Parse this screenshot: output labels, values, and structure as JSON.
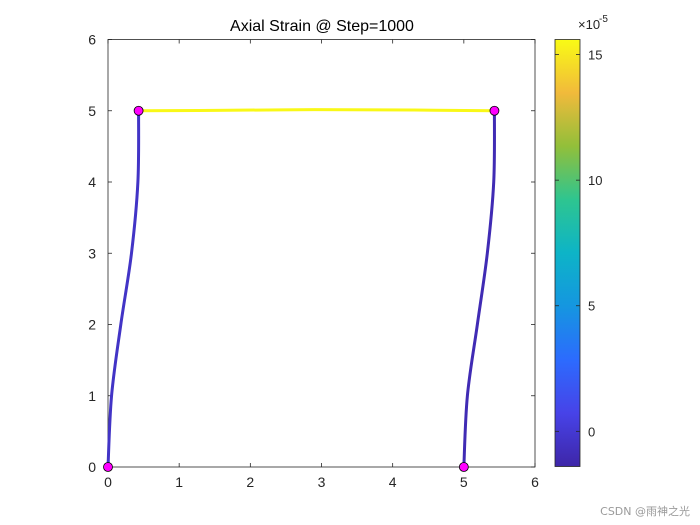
{
  "chart_data": [
    {
      "type": "line",
      "title": "Axial Strain @ Step=1000",
      "xlim": [
        0,
        6
      ],
      "ylim": [
        0,
        6
      ],
      "x_ticks": [
        "0",
        "1",
        "2",
        "3",
        "4",
        "5",
        "6"
      ],
      "y_ticks": [
        "0",
        "1",
        "2",
        "3",
        "4",
        "5",
        "6"
      ],
      "grid": false,
      "series": [
        {
          "strain": -4e-06,
          "x": [
            0,
            0.05,
            0.18,
            0.33,
            0.42,
            0.43
          ],
          "y": [
            0,
            1,
            2,
            3,
            4,
            5
          ]
        },
        {
          "strain": 0.000155,
          "x": [
            0.43,
            1.5,
            2.9,
            4.3,
            5.43
          ],
          "y": [
            5,
            5.005,
            5.015,
            5.01,
            5
          ]
        },
        {
          "strain": -1e-05,
          "x": [
            5,
            5.05,
            5.19,
            5.33,
            5.42,
            5.43
          ],
          "y": [
            0,
            1,
            2,
            3,
            4,
            5
          ]
        }
      ],
      "nodes": {
        "x": [
          0,
          0.43,
          5,
          5.43
        ],
        "y": [
          0,
          5,
          0,
          5
        ],
        "color": "#ff00ff"
      },
      "colorbar": {
        "colormap": "parula",
        "range": [
          -1.4,
          15.6
        ],
        "ticks": [
          "0",
          "5",
          "10",
          "15"
        ],
        "exponent_label": "×10",
        "exponent": "-5"
      }
    }
  ],
  "watermark": "CSDN @雨神之光"
}
